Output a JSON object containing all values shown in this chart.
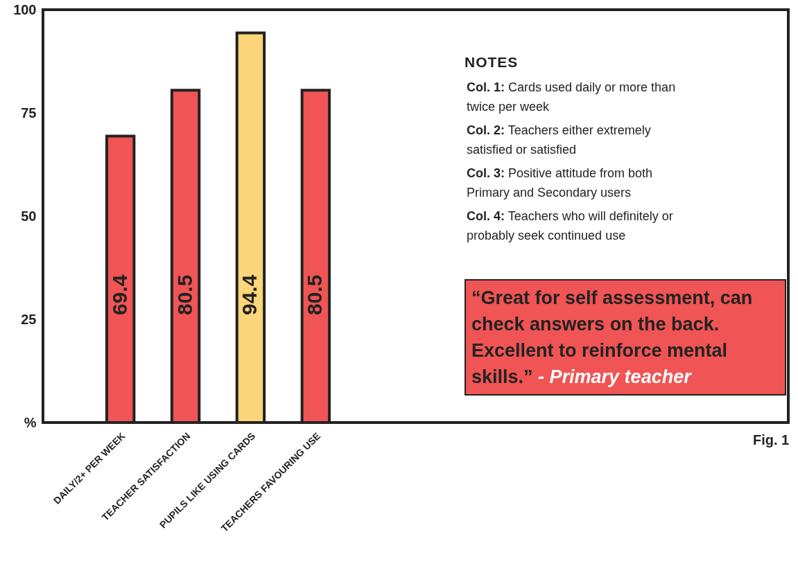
{
  "chart_data": {
    "type": "bar",
    "categories": [
      "DAILY/2+ PER WEEK",
      "TEACHER SATISFACTION",
      "PUPILS LIKE USING CARDS",
      "TEACHERS FAVOURING  USE"
    ],
    "values": [
      69.4,
      80.5,
      94.4,
      80.5
    ],
    "colors": [
      "#f05454",
      "#f05454",
      "#fdd57a",
      "#f05454"
    ],
    "ylim": [
      0,
      100
    ],
    "yticks": [
      {
        "value": 0,
        "label": "%"
      },
      25,
      50,
      75,
      100
    ],
    "data_labels": true,
    "annotations": [
      "NOTES",
      "Col. 1: Cards used daily or more than twice per week",
      "Col. 2: Teachers either extremely satisfied or satisfied",
      "Col. 3: Positive attitude from both Primary and Secondary users",
      "Col. 4: Teachers who will definitely or probably seek continued use",
      "“Great for self assessment, can check answers on the back. Excellent to reinforce mental skills.” - Primary teacher",
      "Fig. 1"
    ]
  }
}
